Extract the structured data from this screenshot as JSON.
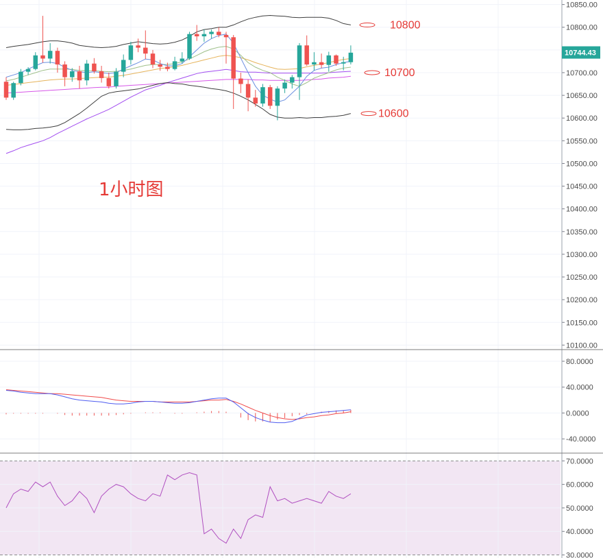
{
  "colors": {
    "up": "#26a69a",
    "down": "#ef5350",
    "bb": "#3d3d3d",
    "ma_blue": "#6b8fe0",
    "ma_green": "#9fc08a",
    "ma_orange": "#e6b35a",
    "ma_magenta": "#d656e8",
    "ma_violet": "#a24cf0",
    "macd_fast": "#4e5cf0",
    "macd_slow": "#f04a4a",
    "rsi": "#b04fc0",
    "rsi_band": "#f2e6f3",
    "annotation": "#e53935"
  },
  "chart_data": [
    {
      "type": "candlestick",
      "title": "1小时图",
      "ylim": [
        10090,
        10860
      ],
      "yticks": [
        "10850.00",
        "10800.00",
        "10750.00",
        "10700.00",
        "10650.00",
        "10600.00",
        "10550.00",
        "10500.00",
        "10450.00",
        "10400.00",
        "10350.00",
        "10300.00",
        "10250.00",
        "10200.00",
        "10150.00",
        "10100.00"
      ],
      "last_price": "10744.43",
      "annotations": [
        {
          "label": "10800",
          "value": 10805
        },
        {
          "label": "10700",
          "value": 10700
        },
        {
          "label": "10600",
          "value": 10610
        }
      ],
      "candles": [
        [
          10680,
          10690,
          10640,
          10645
        ],
        [
          10645,
          10680,
          10640,
          10677
        ],
        [
          10677,
          10708,
          10672,
          10702
        ],
        [
          10702,
          10712,
          10695,
          10708
        ],
        [
          10708,
          10745,
          10705,
          10738
        ],
        [
          10738,
          10825,
          10722,
          10731
        ],
        [
          10731,
          10765,
          10720,
          10748
        ],
        [
          10748,
          10755,
          10700,
          10718
        ],
        [
          10718,
          10725,
          10670,
          10690
        ],
        [
          10690,
          10710,
          10680,
          10703
        ],
        [
          10703,
          10715,
          10665,
          10683
        ],
        [
          10683,
          10728,
          10672,
          10720
        ],
        [
          10720,
          10732,
          10698,
          10703
        ],
        [
          10703,
          10715,
          10678,
          10688
        ],
        [
          10688,
          10700,
          10665,
          10670
        ],
        [
          10670,
          10710,
          10665,
          10702
        ],
        [
          10702,
          10740,
          10690,
          10728
        ],
        [
          10728,
          10768,
          10718,
          10760
        ],
        [
          10760,
          10775,
          10745,
          10755
        ],
        [
          10755,
          10793,
          10730,
          10742
        ],
        [
          10742,
          10750,
          10710,
          10718
        ],
        [
          10718,
          10728,
          10704,
          10713
        ],
        [
          10713,
          10722,
          10703,
          10708
        ],
        [
          10708,
          10735,
          10705,
          10725
        ],
        [
          10725,
          10745,
          10720,
          10731
        ],
        [
          10731,
          10790,
          10728,
          10785
        ],
        [
          10785,
          10805,
          10770,
          10780
        ],
        [
          10780,
          10795,
          10768,
          10785
        ],
        [
          10785,
          10795,
          10775,
          10790
        ],
        [
          10790,
          10800,
          10778,
          10783
        ],
        [
          10783,
          10790,
          10720,
          10778
        ],
        [
          10778,
          10783,
          10620,
          10687
        ],
        [
          10687,
          10700,
          10655,
          10675
        ],
        [
          10675,
          10685,
          10615,
          10645
        ],
        [
          10645,
          10662,
          10625,
          10632
        ],
        [
          10632,
          10675,
          10625,
          10668
        ],
        [
          10668,
          10673,
          10620,
          10627
        ],
        [
          10627,
          10670,
          10595,
          10665
        ],
        [
          10665,
          10685,
          10655,
          10678
        ],
        [
          10678,
          10695,
          10665,
          10690
        ],
        [
          10690,
          10765,
          10640,
          10760
        ],
        [
          10760,
          10782,
          10715,
          10718
        ],
        [
          10718,
          10745,
          10705,
          10723
        ],
        [
          10723,
          10742,
          10710,
          10717
        ],
        [
          10717,
          10746,
          10702,
          10738
        ],
        [
          10738,
          10740,
          10715,
          10720
        ],
        [
          10720,
          10735,
          10705,
          10723
        ],
        [
          10723,
          10760,
          10718,
          10744
        ]
      ],
      "bollinger_upper": [
        10755,
        10758,
        10760,
        10762,
        10765,
        10768,
        10770,
        10770,
        10768,
        10765,
        10760,
        10758,
        10756,
        10755,
        10756,
        10758,
        10762,
        10765,
        10768,
        10766,
        10764,
        10763,
        10764,
        10767,
        10772,
        10780,
        10790,
        10795,
        10797,
        10800,
        10800,
        10805,
        10812,
        10818,
        10822,
        10825,
        10826,
        10825,
        10824,
        10822,
        10821,
        10822,
        10822,
        10822,
        10820,
        10815,
        10808,
        10805
      ],
      "bollinger_lower": [
        10575,
        10574,
        10574,
        10575,
        10577,
        10578,
        10580,
        10583,
        10590,
        10600,
        10610,
        10622,
        10635,
        10648,
        10655,
        10658,
        10660,
        10662,
        10664,
        10668,
        10672,
        10676,
        10678,
        10676,
        10675,
        10672,
        10670,
        10668,
        10665,
        10663,
        10660,
        10655,
        10648,
        10640,
        10630,
        10620,
        10608,
        10602,
        10600,
        10600,
        10601,
        10600,
        10601,
        10601,
        10603,
        10604,
        10606,
        10610
      ],
      "ma_blue": [
        10690,
        10695,
        10700,
        10708,
        10715,
        10722,
        10723,
        10720,
        10712,
        10705,
        10702,
        10700,
        10702,
        10700,
        10698,
        10700,
        10708,
        10715,
        10722,
        10730,
        10728,
        10720,
        10715,
        10715,
        10720,
        10735,
        10750,
        10765,
        10775,
        10782,
        10785,
        10765,
        10732,
        10700,
        10670,
        10650,
        10642,
        10635,
        10640,
        10655,
        10670,
        10692,
        10705,
        10710,
        10712,
        10718,
        10722,
        10725
      ],
      "ma_green": [
        10682,
        10685,
        10690,
        10695,
        10700,
        10705,
        10708,
        10708,
        10708,
        10707,
        10705,
        10704,
        10704,
        10703,
        10702,
        10703,
        10705,
        10708,
        10712,
        10716,
        10718,
        10718,
        10718,
        10720,
        10724,
        10730,
        10738,
        10746,
        10752,
        10756,
        10758,
        10752,
        10738,
        10722,
        10712,
        10705,
        10700,
        10690,
        10683,
        10675,
        10670,
        10678,
        10688,
        10694,
        10700,
        10706,
        10710,
        10712
      ],
      "ma_orange": [
        10672,
        10674,
        10676,
        10678,
        10680,
        10682,
        10684,
        10685,
        10686,
        10686,
        10687,
        10688,
        10689,
        10690,
        10690,
        10692,
        10694,
        10697,
        10700,
        10703,
        10706,
        10709,
        10711,
        10713,
        10716,
        10720,
        10724,
        10728,
        10732,
        10736,
        10738,
        10736,
        10733,
        10728,
        10722,
        10717,
        10712,
        10708,
        10707,
        10708,
        10709,
        10713,
        10716,
        10719,
        10722,
        10726,
        10729,
        10731
      ],
      "ma_magenta": [
        10655,
        10656,
        10657,
        10658,
        10659,
        10660,
        10661,
        10662,
        10663,
        10664,
        10665,
        10666,
        10667,
        10668,
        10668,
        10670,
        10671,
        10672,
        10673,
        10674,
        10675,
        10676,
        10677,
        10678,
        10679,
        10680,
        10681,
        10682,
        10683,
        10684,
        10685,
        10685,
        10685,
        10685,
        10684,
        10684,
        10683,
        10683,
        10683,
        10683,
        10683,
        10684,
        10685,
        10686,
        10688,
        10689,
        10690,
        10692
      ],
      "ma_violet": [
        10522,
        10528,
        10535,
        10540,
        10545,
        10550,
        10557,
        10566,
        10574,
        10582,
        10590,
        10598,
        10605,
        10612,
        10619,
        10628,
        10637,
        10646,
        10654,
        10662,
        10667,
        10672,
        10678,
        10683,
        10688,
        10693,
        10698,
        10701,
        10703,
        10705,
        10707,
        10705,
        10702,
        10701,
        10701,
        10700,
        10699,
        10699,
        10699,
        10699,
        10699,
        10699,
        10699,
        10699,
        10700,
        10701,
        10702,
        10703
      ]
    },
    {
      "type": "line",
      "ylim": [
        -62,
        98
      ],
      "yticks": [
        "80.0000",
        "40.0000",
        "0.0000",
        "-40.0000"
      ],
      "macd_fast": [
        35,
        34,
        32,
        31,
        30,
        30,
        30,
        28,
        25,
        22,
        20,
        19,
        18,
        17,
        15,
        14,
        14,
        15,
        17,
        18,
        18,
        17,
        16,
        15,
        15,
        16,
        18,
        20,
        22,
        23,
        23,
        17,
        8,
        -1,
        -7,
        -11,
        -14,
        -15,
        -15,
        -13,
        -8,
        -3,
        -1,
        1,
        2,
        3,
        4,
        5
      ],
      "macd_slow": [
        36,
        35,
        34,
        33,
        32,
        31,
        30,
        30,
        29,
        28,
        27,
        26,
        25,
        24,
        22,
        20,
        19,
        18,
        18,
        18,
        18,
        17,
        17,
        17,
        17,
        17,
        18,
        19,
        20,
        20,
        21,
        18,
        14,
        9,
        4,
        0,
        -4,
        -7,
        -9,
        -10,
        -9,
        -7,
        -6,
        -4,
        -3,
        -1,
        0,
        2
      ],
      "histogram": [
        -2,
        -1,
        -1,
        -1,
        -1,
        -1,
        0,
        -1,
        -3,
        -4,
        -4,
        -4,
        -4,
        -4,
        -4,
        -3,
        -2,
        -1,
        0,
        1,
        1,
        1,
        0,
        -1,
        -1,
        0,
        1,
        2,
        3,
        3,
        2,
        0,
        -7,
        -11,
        -13,
        -13,
        -14,
        -10,
        -8,
        -5,
        -3,
        -2,
        0,
        2,
        3,
        4,
        4,
        5
      ]
    },
    {
      "type": "line",
      "ylim": [
        29,
        72
      ],
      "yticks": [
        "70.0000",
        "60.0000",
        "50.0000",
        "40.0000",
        "30.0000"
      ],
      "band": [
        30,
        70
      ],
      "rsi": [
        50,
        56,
        58,
        57,
        61,
        59,
        61,
        55,
        51,
        53,
        57,
        54,
        48,
        55,
        58,
        60,
        59,
        56,
        54,
        53,
        56,
        55,
        64,
        62,
        64,
        65,
        64,
        39,
        41,
        37,
        35,
        41,
        37,
        45,
        47,
        46,
        59,
        53,
        54,
        52,
        53,
        54,
        53,
        52,
        57,
        55,
        54,
        56
      ]
    }
  ]
}
